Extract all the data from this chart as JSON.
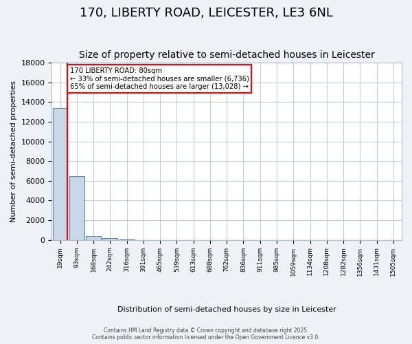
{
  "title": "170, LIBERTY ROAD, LEICESTER, LE3 6NL",
  "subtitle": "Size of property relative to semi-detached houses in Leicester",
  "xlabel": "Distribution of semi-detached houses by size in Leicester",
  "ylabel": "Number of semi-detached properties",
  "bar_values": [
    13400,
    6500,
    400,
    200,
    50,
    10,
    5,
    2,
    1,
    0,
    0,
    0,
    0,
    0,
    0,
    0,
    0,
    0,
    0,
    0,
    0
  ],
  "bar_labels": [
    "19sqm",
    "93sqm",
    "168sqm",
    "242sqm",
    "316sqm",
    "391sqm",
    "465sqm",
    "539sqm",
    "613sqm",
    "688sqm",
    "762sqm",
    "836sqm",
    "911sqm",
    "985sqm",
    "1059sqm",
    "1134sqm",
    "1208sqm",
    "1282sqm",
    "1356sqm",
    "1431sqm",
    "1505sqm"
  ],
  "bar_color": "#c8d8e8",
  "bar_edge_color": "#5588aa",
  "ylim": [
    0,
    18000
  ],
  "yticks": [
    0,
    2000,
    4000,
    6000,
    8000,
    10000,
    12000,
    14000,
    16000,
    18000
  ],
  "property_size": 80,
  "property_bar_index": 1,
  "annotation_text": "170 LIBERTY ROAD: 80sqm\n← 33% of semi-detached houses are smaller (6,736)\n65% of semi-detached houses are larger (13,028) →",
  "footer_text": "Contains HM Land Registry data © Crown copyright and database right 2025.\nContains public sector information licensed under the Open Government Licence v3.0.",
  "bg_color": "#eef2f6",
  "plot_bg_color": "#ffffff",
  "grid_color": "#c0ccd8",
  "title_fontsize": 13,
  "subtitle_fontsize": 10
}
